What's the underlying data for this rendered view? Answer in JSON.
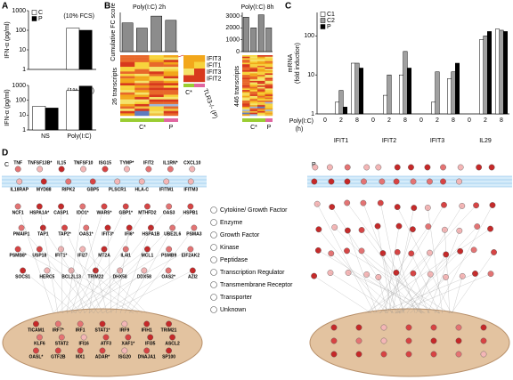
{
  "panel_labels": [
    "A",
    "B",
    "C",
    "D"
  ],
  "chart_data": [
    {
      "type": "bar",
      "y_label": "IFN-α (pg/ml)",
      "annotation": "(10% FCS)",
      "log_scale": true,
      "legend": "top-left",
      "categories": [
        null,
        null
      ],
      "series": [
        {
          "name": "C",
          "color": "#ffffff",
          "values": [
            null,
            130
          ]
        },
        {
          "name": "P",
          "color": "#000000",
          "values": [
            null,
            100
          ]
        }
      ],
      "ylim": [
        1,
        1000
      ],
      "yticks": [
        1,
        10,
        100,
        1000
      ]
    },
    {
      "type": "bar",
      "y_label": "IFN-α (pg/ml)",
      "annotation": "(1% SAB)",
      "log_scale": true,
      "categories": [
        "NS",
        "Poly(I:C)"
      ],
      "series": [
        {
          "name": "C",
          "color": "#ffffff",
          "values": [
            40,
            450
          ]
        },
        {
          "name": "P",
          "color": "#000000",
          "values": [
            30,
            900
          ]
        }
      ],
      "ylim": [
        1,
        1000
      ],
      "yticks": [
        1,
        10,
        100,
        1000
      ]
    },
    {
      "type": "bar",
      "title": "Poly(I:C) 2h",
      "y_label": "Cumulative FC score",
      "categories": [
        null,
        null,
        null,
        null
      ],
      "values": [
        55,
        45,
        68,
        60
      ],
      "color": "#8c8c8c",
      "ylim": [
        0,
        75
      ]
    },
    {
      "type": "bar",
      "title": "Poly(I:C) 8h",
      "categories": [
        null,
        null,
        null,
        null
      ],
      "values": [
        2900,
        2000,
        3100,
        2000
      ],
      "color": "#8c8c8c",
      "ylim": [
        0,
        3300
      ],
      "yticks": [
        0,
        1000,
        2000,
        3000
      ]
    },
    {
      "type": "bar",
      "y_label": [
        "mRNA",
        "(fold induction)"
      ],
      "x_label": "Poly(I:C)",
      "x_unit": "(h)",
      "log_scale": true,
      "legend": "top-left",
      "categories": [
        "0",
        "2",
        "8",
        "0",
        "2",
        "8",
        "0",
        "2",
        "8",
        "0",
        "2",
        "8"
      ],
      "groups": [
        "IFIT1",
        "IFIT2",
        "IFIT3",
        "IL29"
      ],
      "series": [
        {
          "name": "C1",
          "color": "#ffffff",
          "values": [
            1,
            2,
            20,
            1,
            3,
            10,
            1,
            2,
            8,
            1,
            80,
            150
          ]
        },
        {
          "name": "C2",
          "color": "#a0a0a0",
          "values": [
            1,
            4,
            20,
            1,
            10,
            40,
            1,
            12,
            12,
            1,
            100,
            140
          ]
        },
        {
          "name": "P",
          "color": "#000000",
          "values": [
            1,
            1.5,
            15,
            1,
            1,
            15,
            1,
            1,
            20,
            1,
            130,
            130
          ]
        }
      ],
      "ylim": [
        1,
        400
      ],
      "yticks": [
        1,
        10,
        100
      ]
    }
  ],
  "heatmaps": {
    "left_label": "26 transcripts",
    "right_label": "446 transcripts",
    "groups": [
      "C*",
      "P"
    ],
    "inset_genes": [
      "IFIT3",
      "IFIT1",
      "IFIT3",
      "IFIT2"
    ],
    "inset_x": [
      "C*",
      "TLR3-/- (P)"
    ]
  },
  "network": {
    "left_label": "C",
    "right_label": "P",
    "membrane_top": [
      "TNF",
      "TNFSF13B*",
      "IL15",
      "TNFSF10",
      "ISG15",
      "TYMP*",
      "IFIT2",
      "IL1RN*",
      "CXCL10"
    ],
    "membrane_bottom": [
      "IL18RAP",
      "MYD88",
      "RIPK2",
      "GBP5",
      "PLSCR1",
      "HLA-C",
      "IFITM1",
      "IFITM3"
    ],
    "cytoplasm": [
      "NCF1",
      "HSPA1A*",
      "CASP1",
      "IDO1*",
      "WARS*",
      "GBP1*",
      "MTHFD2",
      "OAS3",
      "HSPB1",
      "PMAIP1",
      "TAP1",
      "TAP2*",
      "OAS1*",
      "IFIT3*",
      "IFI6*",
      "HSPA1B",
      "UBE2L6",
      "PSMA3",
      "PSMB8*",
      "USP18",
      "IFIT1*",
      "IFI27",
      "MT2A",
      "IL4I1",
      "MCL1",
      "PSMB9",
      "EIF2AK2",
      "SOCS1",
      "HERC5",
      "BCL2L13",
      "TRIM22",
      "DHX58",
      "DDX58",
      "OAS2*",
      "AZI2"
    ],
    "nucleus": [
      "TICAM1",
      "IRF7*",
      "IRF1",
      "STAT1*",
      "IRF9",
      "IFIH1",
      "TRIM21",
      "KLF6",
      "STAT2",
      "IFI16",
      "ATF3",
      "XAF1*",
      "IFI35",
      "ASCL2",
      "OASL*",
      "GTF2B",
      "MX1",
      "ADAR*",
      "ISG20",
      "DNAJA1",
      "SP100"
    ],
    "legend": [
      "Cytokine/ Growth Factor",
      "Enzyme",
      "Growth Factor",
      "Kinase",
      "Peptidase",
      "Transcription Regulator",
      "Transmembrane Receptor",
      "Transporter",
      "Unknown"
    ]
  }
}
